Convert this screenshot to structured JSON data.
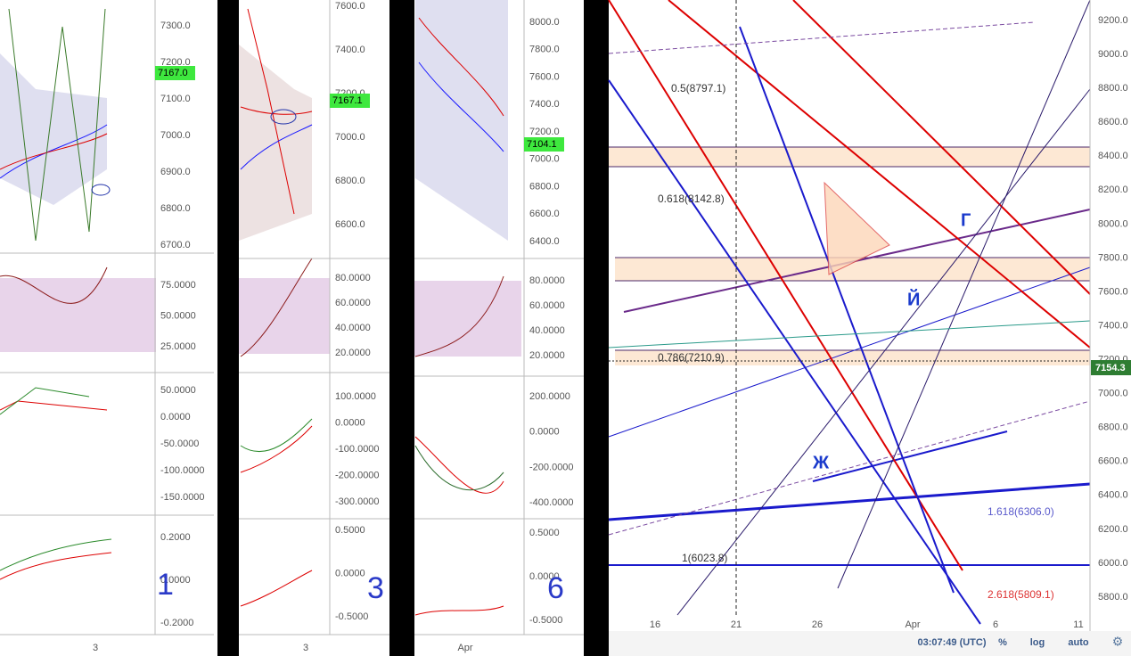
{
  "panels": [
    {
      "price_axis": [
        "7300.0",
        "7200.0",
        "7100.0",
        "7000.0",
        "6900.0",
        "6800.0",
        "6700.0"
      ],
      "price_tag": "7167.0",
      "rsi_axis": [
        "75.0000",
        "50.0000",
        "25.0000"
      ],
      "macd_axis": [
        "50.0000",
        "0.0000",
        "-50.0000",
        "-100.0000",
        "-150.0000"
      ],
      "osc_axis": [
        "0.2000",
        "0.0000",
        "-0.2000"
      ],
      "time_axis": [
        "3"
      ],
      "note": "1"
    },
    {
      "price_axis": [
        "7600.0",
        "7400.0",
        "7200.0",
        "7000.0",
        "6800.0",
        "6600.0"
      ],
      "price_tag": "7167.1",
      "rsi_axis": [
        "80.0000",
        "60.0000",
        "40.0000",
        "20.0000"
      ],
      "macd_axis": [
        "100.0000",
        "0.0000",
        "-100.0000",
        "-200.0000",
        "-300.0000"
      ],
      "osc_axis": [
        "0.5000",
        "0.0000",
        "-0.5000"
      ],
      "time_axis": [
        "3"
      ],
      "note": "3"
    },
    {
      "price_axis": [
        "8000.0",
        "7800.0",
        "7600.0",
        "7400.0",
        "7200.0",
        "7000.0",
        "6800.0",
        "6600.0",
        "6400.0"
      ],
      "price_tag": "7104.1",
      "rsi_axis": [
        "80.0000",
        "60.0000",
        "40.0000",
        "20.0000"
      ],
      "macd_axis": [
        "200.0000",
        "0.0000",
        "-200.0000",
        "-400.0000"
      ],
      "osc_axis": [
        "0.5000",
        "0.0000",
        "-0.5000"
      ],
      "time_axis": [
        "Apr"
      ],
      "note": "6"
    }
  ],
  "main": {
    "price_axis": [
      "9200.0",
      "9000.0",
      "8800.0",
      "8600.0",
      "8400.0",
      "8200.0",
      "8000.0",
      "7800.0",
      "7600.0",
      "7400.0",
      "7200.0",
      "7000.0",
      "6800.0",
      "6600.0",
      "6400.0",
      "6200.0",
      "6000.0",
      "5800.0"
    ],
    "price_tag": "7154.3",
    "time_axis": [
      "16",
      "21",
      "26",
      "Apr",
      "6",
      "11"
    ],
    "fib_labels": [
      "0.5(8797.1)",
      "0.618(8142.8)",
      "0.786(7210.9)",
      "1(6023.8)",
      "1.618(6306.0)",
      "2.618(5809.1)"
    ],
    "wave_labels": [
      "Г",
      "Й",
      "Ж"
    ],
    "toolbar": {
      "clock": "03:07:49 (UTC)",
      "percent": "%",
      "log": "log",
      "auto": "auto"
    }
  }
}
